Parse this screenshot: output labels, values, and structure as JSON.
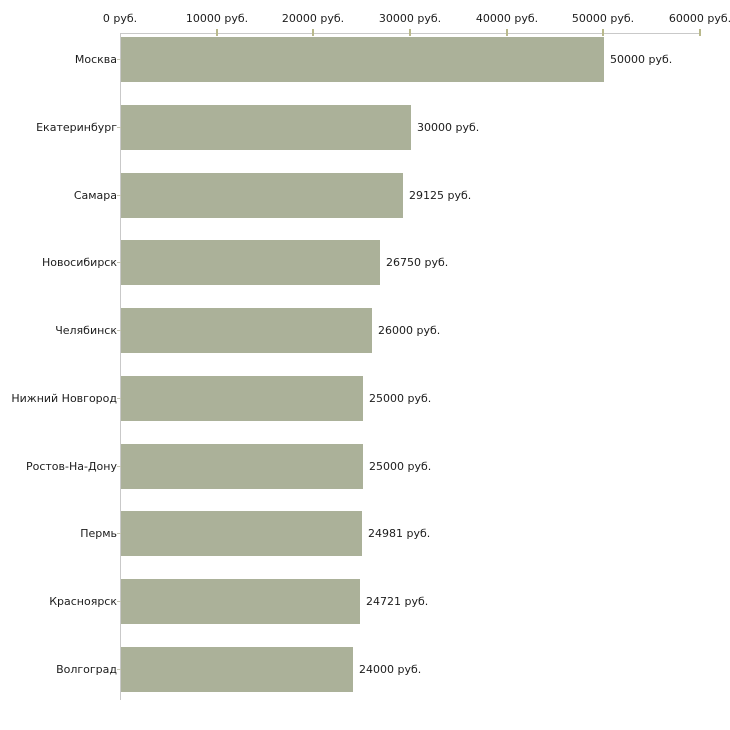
{
  "chart_data": {
    "type": "bar",
    "orientation": "horizontal",
    "title": "",
    "xlabel": "",
    "ylabel": "",
    "unit": "руб.",
    "categories": [
      "Москва",
      "Екатеринбург",
      "Самара",
      "Новосибирск",
      "Челябинск",
      "Нижний Новгород",
      "Ростов-На-Дону",
      "Пермь",
      "Красноярск",
      "Волгоград"
    ],
    "values": [
      50000,
      30000,
      29125,
      26750,
      26000,
      25000,
      25000,
      24981,
      24721,
      24000
    ],
    "bar_labels": [
      "50000 руб.",
      "30000 руб.",
      "29125 руб.",
      "26750 руб.",
      "26000 руб.",
      "25000 руб.",
      "25000 руб.",
      "24981 руб.",
      "24721 руб.",
      "24000 руб."
    ],
    "x_axis": {
      "position": "top",
      "min": 0,
      "max": 60000,
      "tick_interval": 10000,
      "tick_values": [
        0,
        10000,
        20000,
        30000,
        40000,
        50000,
        60000
      ],
      "tick_labels": [
        "0 руб.",
        "10000 руб.",
        "20000 руб.",
        "30000 руб.",
        "40000 руб.",
        "50000 руб.",
        "60000 руб."
      ]
    },
    "grid": false,
    "legend": false
  },
  "colors": {
    "bar": "#abb199",
    "axis_line": "#c9c9c9",
    "axis_tick": "#b9b98c",
    "category_tick": "#c6c6b4",
    "text": "#1c1c1c",
    "background": "#ffffff"
  }
}
